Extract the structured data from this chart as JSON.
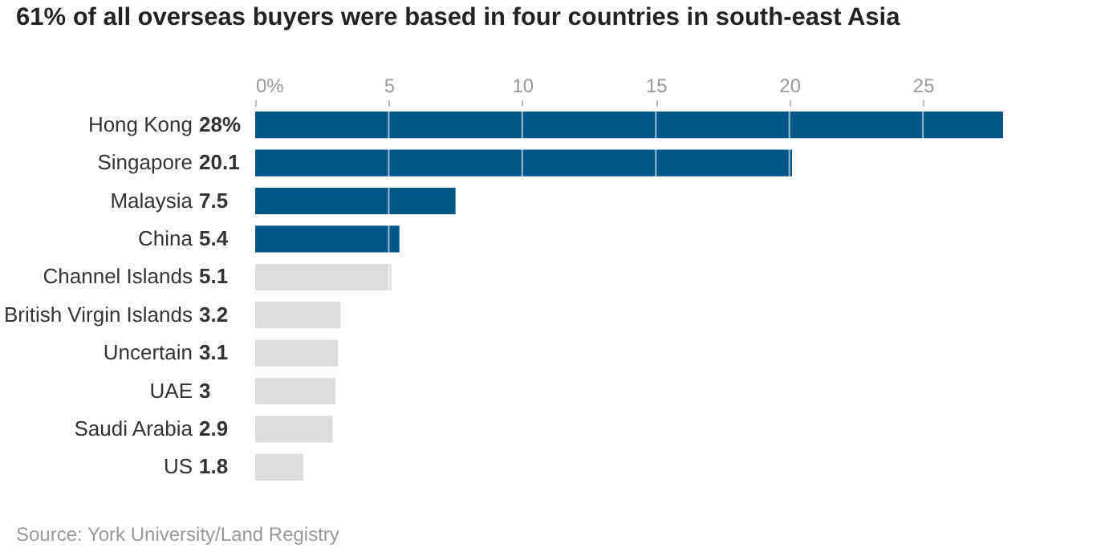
{
  "chart_data": {
    "type": "bar",
    "orientation": "horizontal",
    "title": "61% of all overseas buyers were based in four countries in south-east Asia",
    "categories": [
      "Hong Kong",
      "Singapore",
      "Malaysia",
      "China",
      "Channel Islands",
      "British Virgin Islands",
      "Uncertain",
      "UAE",
      "Saudi Arabia",
      "US"
    ],
    "values": [
      28,
      20.1,
      7.5,
      5.4,
      5.1,
      3.2,
      3.1,
      3,
      2.9,
      1.8
    ],
    "value_labels": [
      "28%",
      "20.1",
      "7.5",
      "5.4",
      "5.1",
      "3.2",
      "3.1",
      "3",
      "2.9",
      "1.8"
    ],
    "colors": [
      "#005689",
      "#005689",
      "#005689",
      "#005689",
      "#dcdcdc",
      "#dcdcdc",
      "#dcdcdc",
      "#dcdcdc",
      "#dcdcdc",
      "#dcdcdc"
    ],
    "xlim": [
      0,
      28
    ],
    "xticks": [
      {
        "value": 0,
        "label": "0%"
      },
      5,
      10,
      15,
      20,
      25
    ],
    "grid": "x",
    "annotations": [
      "Source: York University/Land Registry"
    ]
  }
}
